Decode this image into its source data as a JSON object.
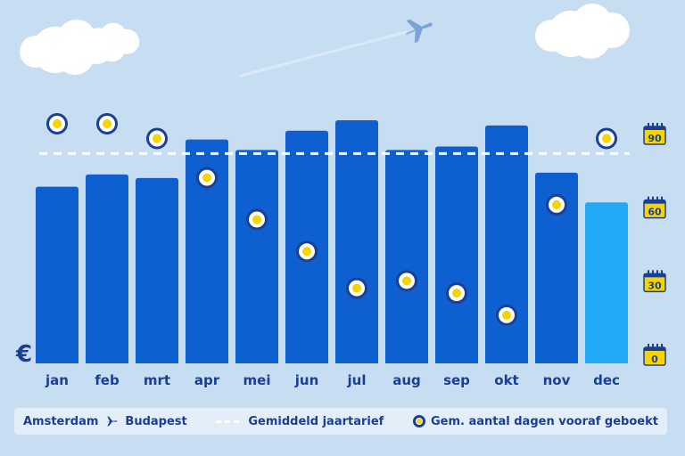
{
  "chart_data": {
    "type": "bar",
    "categories": [
      "jan",
      "feb",
      "mrt",
      "apr",
      "mei",
      "jun",
      "jul",
      "aug",
      "sep",
      "okt",
      "nov",
      "dec"
    ],
    "series": [
      {
        "name": "Amsterdam ✈ Budapest",
        "values": [
          50.5,
          54,
          53,
          64,
          61,
          66.5,
          69.5,
          61,
          62,
          68,
          54.5,
          46
        ],
        "colors": [
          "#0e5fd0",
          "#0e5fd0",
          "#0e5fd0",
          "#0e5fd0",
          "#0e5fd0",
          "#0e5fd0",
          "#0e5fd0",
          "#0e5fd0",
          "#0e5fd0",
          "#0e5fd0",
          "#0e5fd0",
          "#20a9f5"
        ]
      }
    ],
    "average_line": {
      "name": "Gemiddeld jaartarief",
      "value": 60
    },
    "secondary_series": {
      "name": "Gem. aantal dagen vooraf geboekt",
      "values": [
        94,
        94,
        88,
        72,
        55,
        42,
        27,
        30,
        25,
        16,
        61,
        88
      ],
      "axis_ticks": [
        "90",
        "60",
        "30",
        "0"
      ],
      "ylim": [
        0,
        90
      ]
    },
    "y_unit": "€",
    "legend_position": "bottom"
  },
  "legend": {
    "route_from": "Amsterdam",
    "route_to": "Budapest",
    "average": "Gemiddeld jaartarief",
    "days": "Gem. aantal dagen vooraf geboekt"
  },
  "colors": {
    "background": "#c7ddf2",
    "bar": "#0e5fd0",
    "bar_highlight": "#20a9f5",
    "label": "#1a3f93",
    "calendar": "#f5d400"
  }
}
